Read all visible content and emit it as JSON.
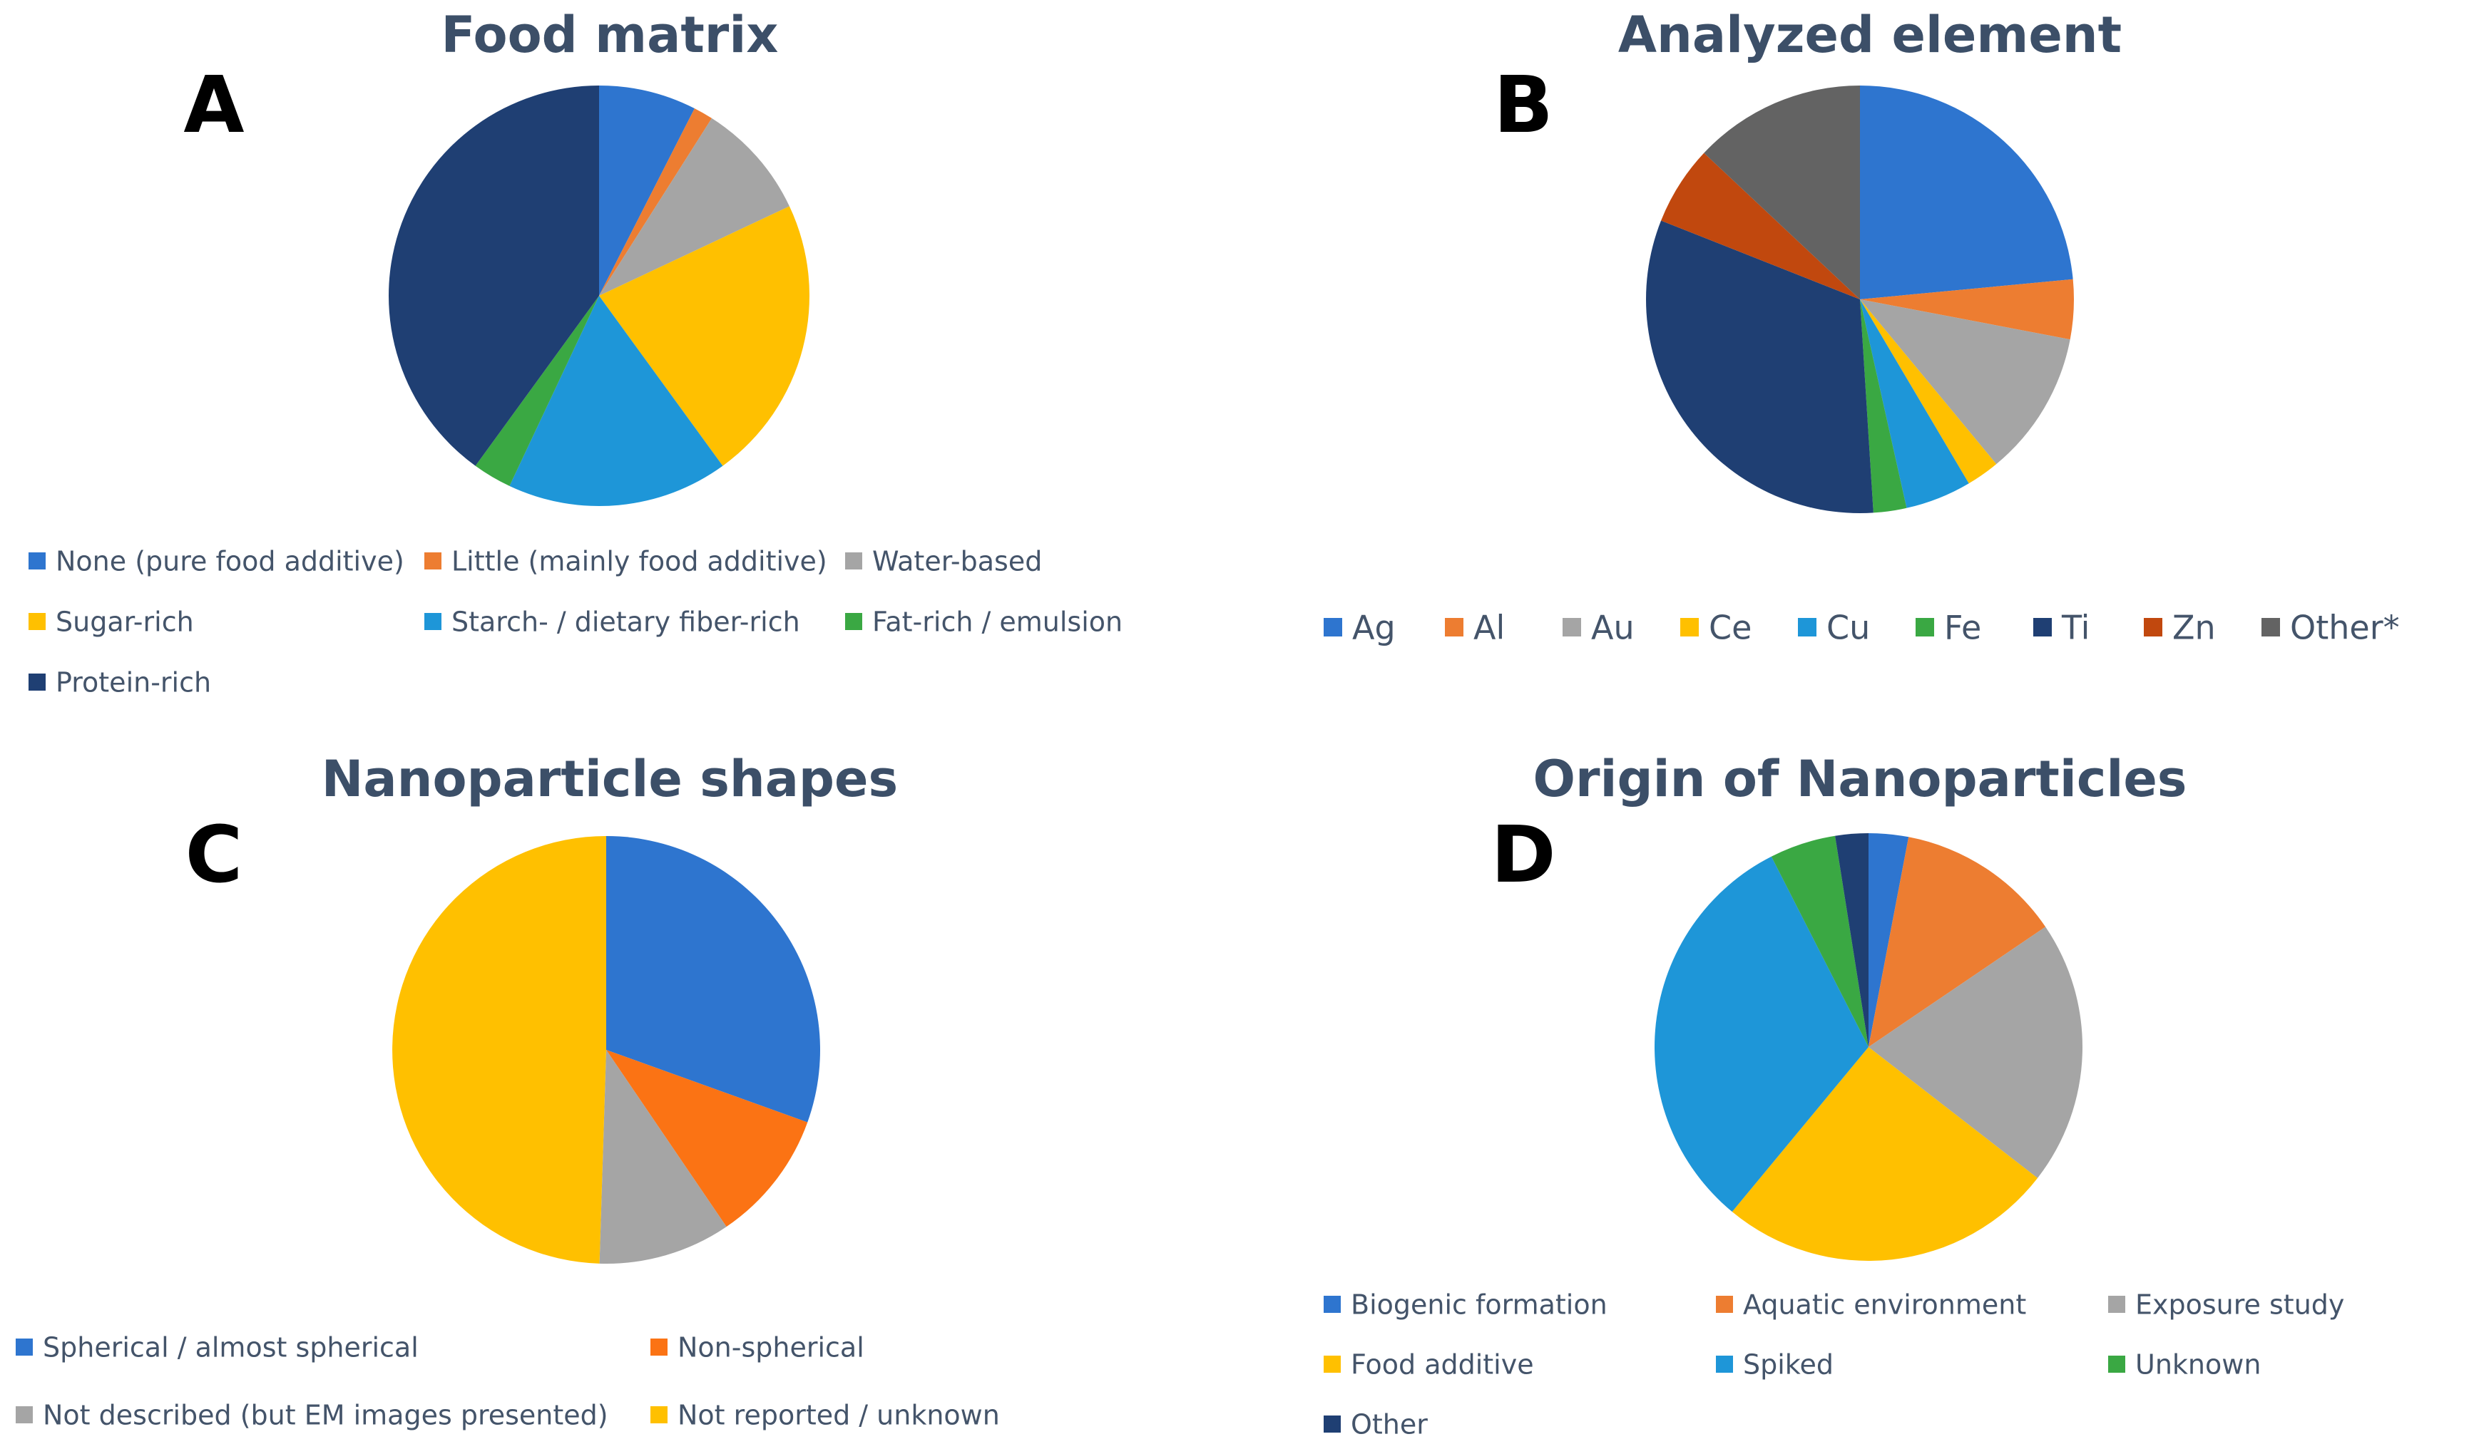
{
  "colors": {
    "title": "#3c4f68",
    "legend_text": "#44546a",
    "letter": "#000000"
  },
  "chart_data": [
    {
      "type": "pie",
      "letter": "A",
      "title": "Food matrix",
      "start_angle": 0,
      "categories": [
        "None (pure food additive)",
        "Little (mainly food additive)",
        "Water-based",
        "Sugar-rich",
        "Starch- / dietary fiber-rich",
        "Fat-rich / emulsion",
        "Protein-rich"
      ],
      "values": [
        7.5,
        1.5,
        9,
        22,
        17,
        3,
        40
      ],
      "colors": [
        "#2e75cf",
        "#ed7d31",
        "#a5a5a5",
        "#ffc000",
        "#1e96d8",
        "#3aa843",
        "#1f3f73"
      ],
      "legend_rows": [
        [
          0,
          1,
          2
        ],
        [
          3,
          4,
          5
        ],
        [
          6
        ]
      ]
    },
    {
      "type": "pie",
      "letter": "B",
      "title": "Analyzed element",
      "start_angle": 0,
      "categories": [
        "Ag",
        "Al",
        "Au",
        "Ce",
        "Cu",
        "Fe",
        "Ti",
        "Zn",
        "Other*"
      ],
      "values": [
        23.5,
        4.5,
        11,
        2.5,
        5,
        2.5,
        32,
        6,
        13
      ],
      "colors": [
        "#2e75cf",
        "#ed7d31",
        "#a5a5a5",
        "#ffc000",
        "#1e96d8",
        "#3aa843",
        "#1f3f73",
        "#c1480e",
        "#636363"
      ],
      "legend_rows": [
        [
          0,
          1,
          2,
          3,
          4,
          5,
          6,
          7,
          8
        ]
      ]
    },
    {
      "type": "pie",
      "letter": "C",
      "title": "Nanoparticle shapes",
      "start_angle": 0,
      "categories": [
        "Spherical / almost spherical",
        "Non-spherical",
        "Not described (but EM images presented)",
        "Not reported / unknown"
      ],
      "values": [
        30.5,
        10,
        10,
        49.5
      ],
      "colors": [
        "#2e75cf",
        "#fb7314",
        "#a5a5a5",
        "#ffc000"
      ],
      "legend_rows": [
        [
          0,
          1
        ],
        [
          2,
          3
        ]
      ]
    },
    {
      "type": "pie",
      "letter": "D",
      "title": "Origin of Nanoparticles",
      "start_angle": 0,
      "categories": [
        "Biogenic formation",
        "Aquatic environment",
        "Exposure study",
        "Food additive",
        "Spiked",
        "Unknown",
        "Other"
      ],
      "values": [
        3,
        12.5,
        20,
        25.5,
        31.5,
        5,
        2.5
      ],
      "colors": [
        "#2e75cf",
        "#ed7d31",
        "#a5a5a5",
        "#ffc000",
        "#1e96d8",
        "#3aa843",
        "#1f3f73"
      ],
      "legend_rows": [
        [
          0,
          1,
          2
        ],
        [
          3,
          4,
          5
        ],
        [
          6
        ]
      ]
    }
  ]
}
